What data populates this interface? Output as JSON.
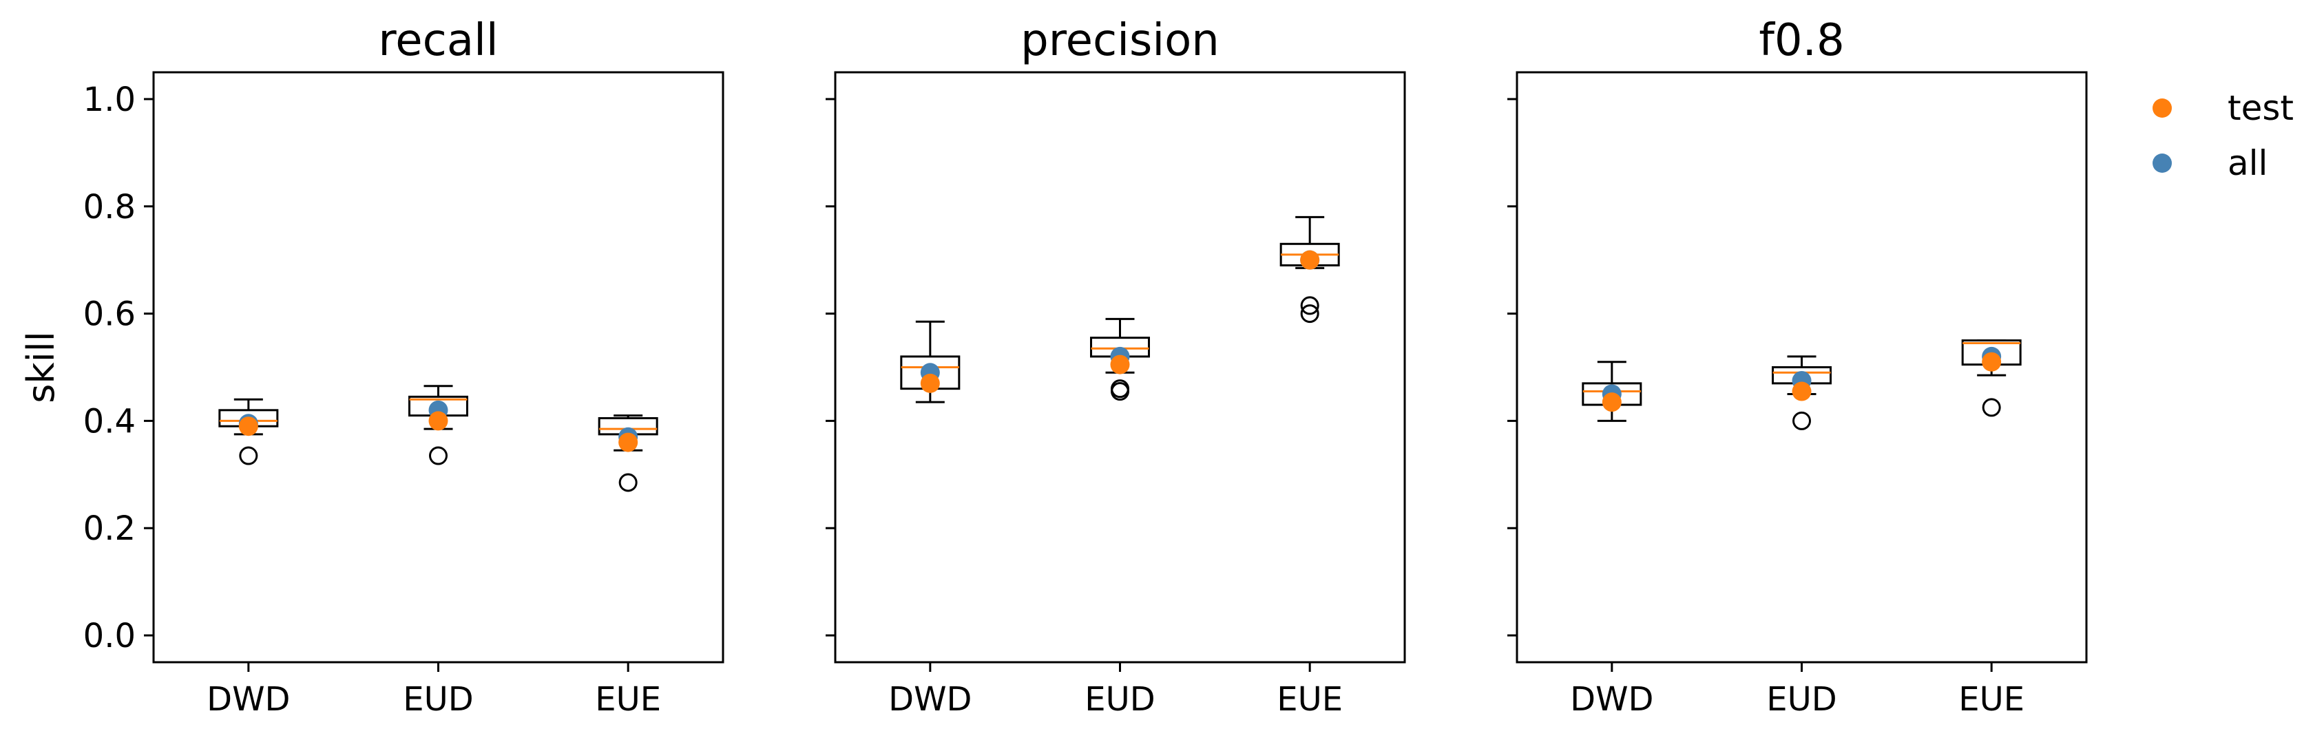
{
  "chart_data": {
    "type": "box",
    "ylabel": "skill",
    "ylim": [
      -0.05,
      1.05
    ],
    "yticks": [
      0.0,
      0.2,
      0.4,
      0.6,
      0.8,
      1.0
    ],
    "ytick_labels": [
      "0.0",
      "0.2",
      "0.4",
      "0.6",
      "0.8",
      "1.0"
    ],
    "categories": [
      "DWD",
      "EUD",
      "EUE"
    ],
    "legend": {
      "placement": "top-right outside",
      "entries": [
        {
          "name": "test",
          "color": "#ff7f0e"
        },
        {
          "name": "all",
          "color": "#4682b4"
        }
      ]
    },
    "colors": {
      "box": "#000000",
      "median": "#ff7f0e",
      "test": "#ff7f0e",
      "all": "#4682b4"
    },
    "panels": [
      {
        "title": "recall",
        "boxes": [
          {
            "category": "DWD",
            "whislo": 0.375,
            "q1": 0.39,
            "median": 0.4,
            "q3": 0.42,
            "whishi": 0.44,
            "fliers": [
              0.335
            ],
            "all": 0.395,
            "test": 0.39
          },
          {
            "category": "EUD",
            "whislo": 0.385,
            "q1": 0.41,
            "median": 0.44,
            "q3": 0.445,
            "whishi": 0.465,
            "fliers": [
              0.335
            ],
            "all": 0.42,
            "test": 0.4
          },
          {
            "category": "EUE",
            "whislo": 0.345,
            "q1": 0.375,
            "median": 0.385,
            "q3": 0.405,
            "whishi": 0.41,
            "fliers": [
              0.285
            ],
            "all": 0.37,
            "test": 0.36
          }
        ]
      },
      {
        "title": "precision",
        "boxes": [
          {
            "category": "DWD",
            "whislo": 0.435,
            "q1": 0.46,
            "median": 0.5,
            "q3": 0.52,
            "whishi": 0.585,
            "fliers": [],
            "all": 0.49,
            "test": 0.47
          },
          {
            "category": "EUD",
            "whislo": 0.49,
            "q1": 0.52,
            "median": 0.535,
            "q3": 0.555,
            "whishi": 0.59,
            "fliers": [
              0.455,
              0.46
            ],
            "all": 0.52,
            "test": 0.505
          },
          {
            "category": "EUE",
            "whislo": 0.685,
            "q1": 0.69,
            "median": 0.71,
            "q3": 0.73,
            "whishi": 0.78,
            "fliers": [
              0.6,
              0.615
            ],
            "all": 0.7,
            "test": 0.7
          }
        ]
      },
      {
        "title": "f0.8",
        "boxes": [
          {
            "category": "DWD",
            "whislo": 0.4,
            "q1": 0.43,
            "median": 0.455,
            "q3": 0.47,
            "whishi": 0.51,
            "fliers": [],
            "all": 0.45,
            "test": 0.435
          },
          {
            "category": "EUD",
            "whislo": 0.45,
            "q1": 0.47,
            "median": 0.49,
            "q3": 0.5,
            "whishi": 0.52,
            "fliers": [
              0.4
            ],
            "all": 0.475,
            "test": 0.455
          },
          {
            "category": "EUE",
            "whislo": 0.485,
            "q1": 0.505,
            "median": 0.545,
            "q3": 0.55,
            "whishi": 0.55,
            "fliers": [
              0.425
            ],
            "all": 0.52,
            "test": 0.51
          }
        ]
      }
    ]
  }
}
